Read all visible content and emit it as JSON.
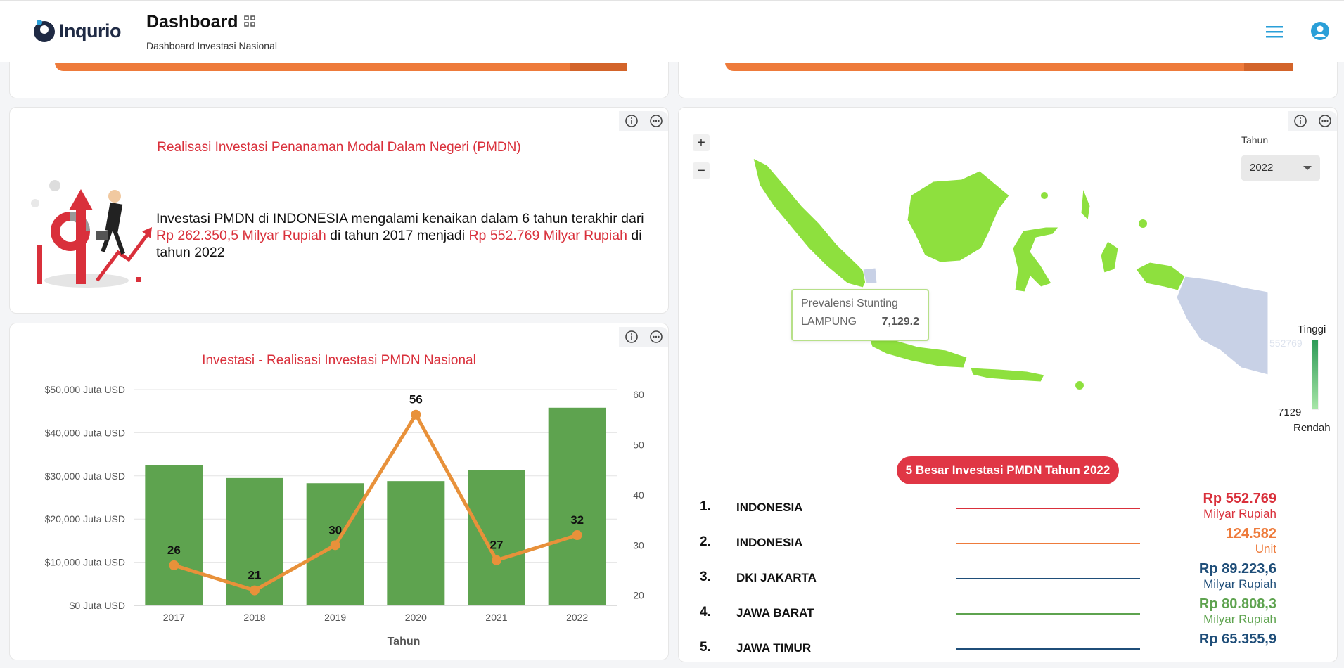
{
  "header": {
    "logo_text": "Inqurio",
    "title": "Dashboard",
    "subtitle": "Dashboard Investasi Nasional"
  },
  "pmdn_card": {
    "title": "Realisasi Investasi Penanaman Modal Dalam Negeri (PMDN)",
    "text_1": "Investasi PMDN di INDONESIA mengalami kenaikan dalam 6 tahun terakhir dari ",
    "highlight_1": "Rp 262.350,5 Milyar Rupiah",
    "text_2": " di tahun 2017 menjadi ",
    "highlight_2": "Rp 552.769 Milyar Rupiah",
    "text_3": " di tahun 2022"
  },
  "chart_card": {
    "title": "Investasi - Realisasi Investasi PMDN Nasional"
  },
  "chart_data": {
    "type": "bar",
    "title": "Investasi - Realisasi Investasi PMDN Nasional",
    "xlabel": "Tahun",
    "categories": [
      "2017",
      "2018",
      "2019",
      "2020",
      "2021",
      "2022"
    ],
    "y_left_ticks": [
      "$0 Juta USD",
      "$10,000 Juta USD",
      "$20,000 Juta USD",
      "$30,000 Juta USD",
      "$40,000 Juta USD",
      "$50,000 Juta USD"
    ],
    "y_left_lim": [
      0,
      50000
    ],
    "y_right_ticks": [
      "20",
      "30",
      "40",
      "50",
      "60"
    ],
    "y_right_lim": [
      18,
      61
    ],
    "series": [
      {
        "type": "bar",
        "axis": "left",
        "color": "#5ea34f",
        "values": [
          32500,
          29500,
          28300,
          28800,
          31300,
          45800
        ]
      },
      {
        "type": "line",
        "axis": "right",
        "color": "#e8913a",
        "values": [
          26,
          21,
          30,
          56,
          27,
          32
        ],
        "labels": [
          "26",
          "21",
          "30",
          "56",
          "27",
          "32"
        ]
      }
    ],
    "grid": true
  },
  "map_card": {
    "tahun_label": "Tahun",
    "tahun_value": "2022",
    "zoom_in": "+",
    "zoom_out": "−",
    "tooltip_title": "Prevalensi Stunting",
    "tooltip_region": "LAMPUNG",
    "tooltip_value": "7,129.2",
    "legend_high": "Tinggi",
    "legend_low": "Rendah",
    "legend_min": "7129",
    "legend_max": "552769",
    "map_colors": {
      "high": "#8ee03e",
      "low": "#c8d1e6"
    }
  },
  "top5": {
    "title": "5 Besar Investasi PMDN Tahun 2022",
    "items": [
      {
        "rank": "1.",
        "name": "INDONESIA",
        "value": "Rp 552.769",
        "unit": "Milyar Rupiah",
        "color": "#d9303b"
      },
      {
        "rank": "2.",
        "name": "INDONESIA",
        "value": "124.582",
        "unit": "Unit",
        "color": "#ee7b3b"
      },
      {
        "rank": "3.",
        "name": "DKI JAKARTA",
        "value": "Rp 89.223,6",
        "unit": "Milyar Rupiah",
        "color": "#1f4e79"
      },
      {
        "rank": "4.",
        "name": "JAWA BARAT",
        "value": "Rp 80.808,3",
        "unit": "Milyar Rupiah",
        "color": "#5ea34f"
      },
      {
        "rank": "5.",
        "name": "JAWA TIMUR",
        "value": "Rp 65.355,9",
        "unit": "",
        "color": "#1f4e79"
      }
    ]
  }
}
